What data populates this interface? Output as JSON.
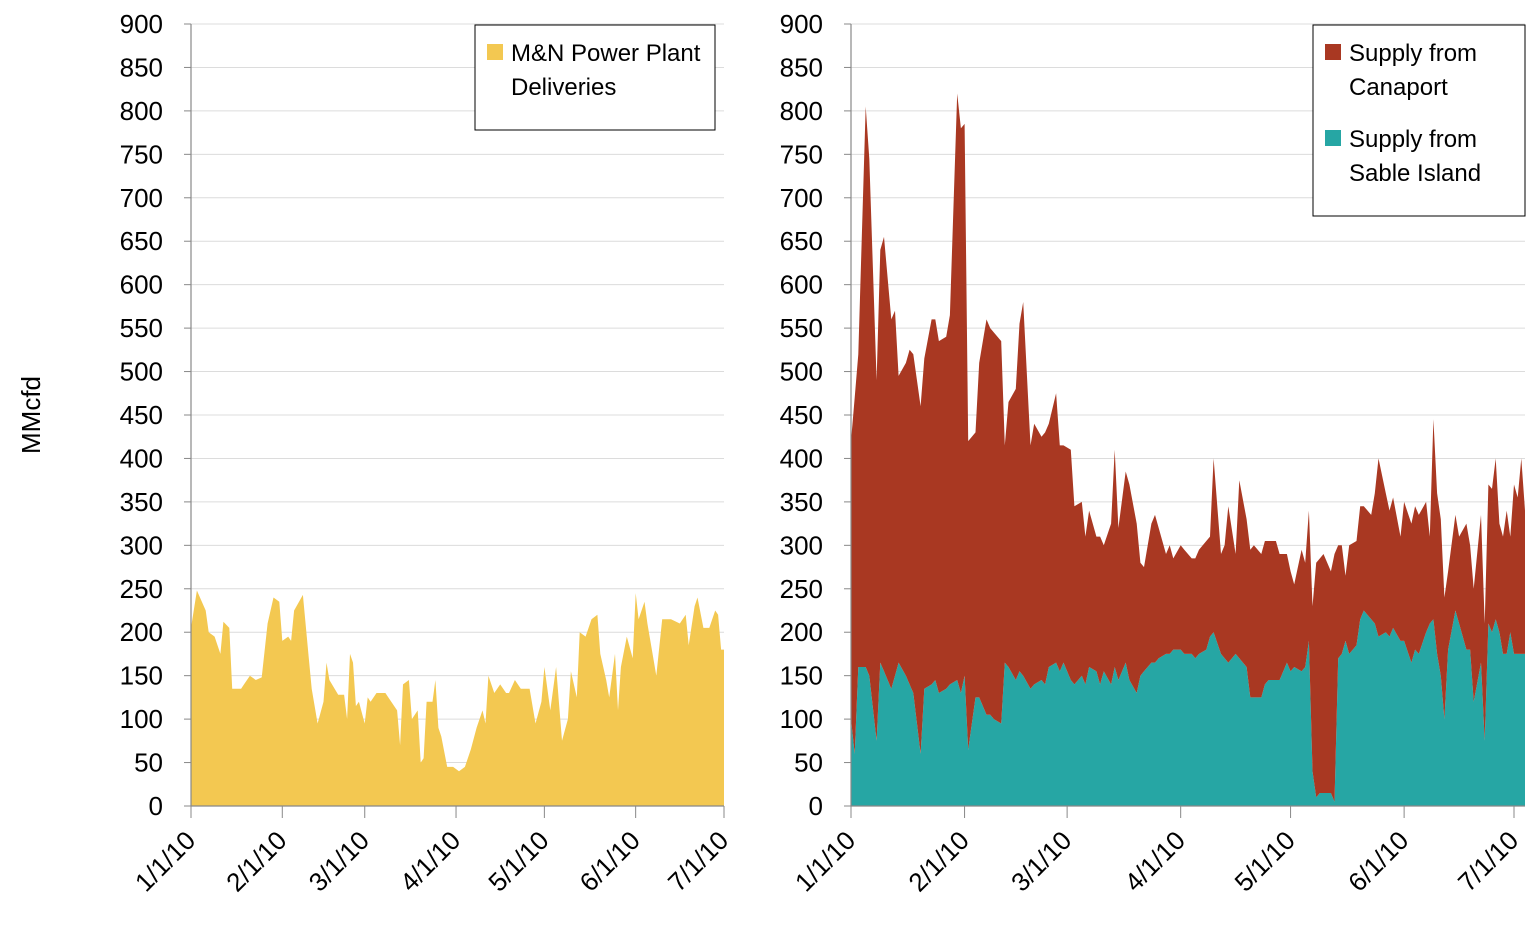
{
  "chart_data": [
    {
      "type": "area",
      "y_label": "MMcfd",
      "grid": true,
      "legend": "upper right",
      "ylim": [
        0,
        900
      ],
      "yticks": [
        0,
        50,
        100,
        150,
        200,
        250,
        300,
        350,
        400,
        450,
        500,
        550,
        600,
        650,
        700,
        750,
        800,
        850,
        900
      ],
      "xlim": [
        "1/1/10",
        "7/1/10"
      ],
      "xticks": [
        "1/1/10",
        "2/1/10",
        "3/1/10",
        "4/1/10",
        "5/1/10",
        "6/1/10",
        "7/1/10"
      ],
      "x": [
        "1/1/10",
        "1/3/10",
        "1/6/10",
        "1/7/10",
        "1/9/10",
        "1/11/10",
        "1/12/10",
        "1/14/10",
        "1/15/10",
        "1/18/10",
        "1/19/10",
        "1/21/10",
        "1/23/10",
        "1/25/10",
        "1/27/10",
        "1/29/10",
        "1/31/10",
        "2/1/10",
        "2/3/10",
        "2/4/10",
        "2/5/10",
        "2/8/10",
        "2/10/10",
        "2/11/10",
        "2/13/10",
        "2/15/10",
        "2/16/10",
        "2/17/10",
        "2/20/10",
        "2/22/10",
        "2/23/10",
        "2/24/10",
        "2/25/10",
        "2/26/10",
        "2/27/10",
        "3/1/10",
        "3/2/10",
        "3/3/10",
        "3/5/10",
        "3/8/10",
        "3/9/10",
        "3/12/10",
        "3/13/10",
        "3/14/10",
        "3/16/10",
        "3/17/10",
        "3/19/10",
        "3/20/10",
        "3/21/10",
        "3/22/10",
        "3/24/10",
        "3/25/10",
        "3/26/10",
        "3/27/10",
        "3/29/10",
        "3/31/10",
        "4/2/10",
        "4/4/10",
        "4/6/10",
        "4/8/10",
        "4/10/10",
        "4/11/10",
        "4/12/10",
        "4/14/10",
        "4/16/10",
        "4/18/10",
        "4/19/10",
        "4/21/10",
        "4/23/10",
        "4/26/10",
        "4/28/10",
        "4/30/10",
        "5/1/10",
        "5/3/10",
        "5/5/10",
        "5/7/10",
        "5/9/10",
        "5/10/10",
        "5/12/10",
        "5/13/10",
        "5/15/10",
        "5/17/10",
        "5/19/10",
        "5/20/10",
        "5/22/10",
        "5/23/10",
        "5/25/10",
        "5/26/10",
        "5/27/10",
        "5/29/10",
        "5/31/10",
        "6/1/10",
        "6/2/10",
        "6/4/10",
        "6/5/10",
        "6/8/10",
        "6/10/10",
        "6/13/10",
        "6/16/10",
        "6/18/10",
        "6/19/10",
        "6/21/10",
        "6/22/10",
        "6/24/10",
        "6/26/10",
        "6/28/10",
        "6/29/10",
        "6/30/10",
        "7/1/10"
      ],
      "series": [
        {
          "name": "M&N Power Plant Deliveries",
          "color": "#f3c851",
          "values": [
            205,
            248,
            225,
            200,
            195,
            175,
            212,
            205,
            135,
            135,
            140,
            150,
            145,
            148,
            210,
            240,
            235,
            190,
            195,
            190,
            225,
            243,
            170,
            135,
            95,
            120,
            165,
            145,
            128,
            128,
            100,
            175,
            165,
            115,
            120,
            95,
            125,
            120,
            130,
            130,
            125,
            110,
            70,
            140,
            145,
            100,
            110,
            50,
            55,
            120,
            120,
            145,
            90,
            80,
            45,
            45,
            40,
            45,
            65,
            90,
            110,
            95,
            150,
            130,
            140,
            130,
            130,
            145,
            135,
            135,
            95,
            120,
            160,
            110,
            160,
            75,
            100,
            155,
            125,
            200,
            195,
            215,
            220,
            175,
            145,
            125,
            175,
            110,
            160,
            195,
            170,
            245,
            215,
            235,
            210,
            150,
            215,
            215,
            210,
            220,
            185,
            230,
            240,
            205,
            205,
            225,
            220,
            180,
            180
          ]
        }
      ]
    },
    {
      "type": "area",
      "grid": true,
      "legend": "upper right",
      "stacked": true,
      "ylim": [
        0,
        900
      ],
      "yticks": [
        0,
        50,
        100,
        150,
        200,
        250,
        300,
        350,
        400,
        450,
        500,
        550,
        600,
        650,
        700,
        750,
        800,
        850,
        900
      ],
      "xlim": [
        "1/1/10",
        "7/4/10"
      ],
      "xticks": [
        "1/1/10",
        "2/1/10",
        "3/1/10",
        "4/1/10",
        "5/1/10",
        "6/1/10",
        "7/1/10"
      ],
      "x": [
        "1/1/10",
        "1/2/10",
        "1/3/10",
        "1/5/10",
        "1/6/10",
        "1/8/10",
        "1/9/10",
        "1/10/10",
        "1/12/10",
        "1/13/10",
        "1/14/10",
        "1/16/10",
        "1/17/10",
        "1/18/10",
        "1/20/10",
        "1/21/10",
        "1/23/10",
        "1/24/10",
        "1/25/10",
        "1/27/10",
        "1/28/10",
        "1/30/10",
        "1/31/10",
        "2/1/10",
        "2/2/10",
        "2/4/10",
        "2/5/10",
        "2/7/10",
        "2/8/10",
        "2/9/10",
        "2/11/10",
        "2/12/10",
        "2/13/10",
        "2/15/10",
        "2/16/10",
        "2/17/10",
        "2/19/10",
        "2/20/10",
        "2/22/10",
        "2/23/10",
        "2/24/10",
        "2/26/10",
        "2/27/10",
        "2/28/10",
        "3/2/10",
        "3/3/10",
        "3/5/10",
        "3/6/10",
        "3/7/10",
        "3/9/10",
        "3/10/10",
        "3/11/10",
        "3/13/10",
        "3/14/10",
        "3/15/10",
        "3/17/10",
        "3/18/10",
        "3/20/10",
        "3/21/10",
        "3/22/10",
        "3/24/10",
        "3/25/10",
        "3/26/10",
        "3/28/10",
        "3/29/10",
        "3/30/10",
        "4/1/10",
        "4/2/10",
        "4/4/10",
        "4/5/10",
        "4/6/10",
        "4/8/10",
        "4/9/10",
        "4/10/10",
        "4/12/10",
        "4/13/10",
        "4/14/10",
        "4/16/10",
        "4/17/10",
        "4/19/10",
        "4/20/10",
        "4/21/10",
        "4/23/10",
        "4/24/10",
        "4/25/10",
        "4/27/10",
        "4/28/10",
        "4/30/10",
        "5/1/10",
        "5/2/10",
        "5/4/10",
        "5/5/10",
        "5/6/10",
        "5/7/10",
        "5/8/10",
        "5/9/10",
        "5/10/10",
        "5/12/10",
        "5/13/10",
        "5/14/10",
        "5/15/10",
        "5/16/10",
        "5/17/10",
        "5/19/10",
        "5/20/10",
        "5/21/10",
        "5/23/10",
        "5/24/10",
        "5/25/10",
        "5/27/10",
        "5/28/10",
        "5/29/10",
        "5/31/10",
        "6/1/10",
        "6/3/10",
        "6/4/10",
        "6/5/10",
        "6/7/10",
        "6/8/10",
        "6/9/10",
        "6/10/10",
        "6/11/10",
        "6/12/10",
        "6/13/10",
        "6/15/10",
        "6/16/10",
        "6/18/10",
        "6/19/10",
        "6/20/10",
        "6/22/10",
        "6/23/10",
        "6/24/10",
        "6/25/10",
        "6/26/10",
        "6/27/10",
        "6/28/10",
        "6/29/10",
        "6/30/10",
        "7/1/10",
        "7/2/10",
        "7/3/10",
        "7/4/10"
      ],
      "series": [
        {
          "name": "Supply from Canaport",
          "color": "#a93822",
          "values": [
            320,
            410,
            360,
            645,
            595,
            415,
            475,
            500,
            425,
            420,
            330,
            360,
            385,
            390,
            400,
            380,
            420,
            415,
            405,
            405,
            425,
            675,
            650,
            635,
            355,
            305,
            385,
            455,
            445,
            445,
            440,
            250,
            305,
            335,
            400,
            430,
            280,
            300,
            280,
            290,
            280,
            310,
            260,
            250,
            265,
            205,
            200,
            170,
            180,
            155,
            170,
            145,
            185,
            250,
            175,
            220,
            225,
            195,
            130,
            120,
            160,
            170,
            150,
            115,
            125,
            105,
            120,
            120,
            110,
            115,
            120,
            125,
            115,
            200,
            115,
            130,
            180,
            115,
            205,
            170,
            170,
            175,
            165,
            165,
            160,
            160,
            145,
            125,
            115,
            95,
            140,
            120,
            150,
            190,
            270,
            270,
            275,
            255,
            285,
            130,
            125,
            75,
            125,
            120,
            130,
            120,
            120,
            150,
            205,
            160,
            145,
            150,
            120,
            160,
            160,
            165,
            160,
            150,
            100,
            230,
            185,
            180,
            140,
            90,
            110,
            100,
            145,
            120,
            130,
            170,
            135,
            160,
            165,
            185,
            125,
            135,
            165,
            110,
            195,
            180,
            225,
            165
          ]
        },
        {
          "name": "Supply from Sable Island",
          "color": "#26a6a4",
          "values": [
            100,
            60,
            160,
            160,
            150,
            75,
            165,
            155,
            135,
            150,
            165,
            150,
            140,
            130,
            60,
            135,
            140,
            145,
            130,
            135,
            140,
            145,
            130,
            150,
            65,
            125,
            125,
            105,
            105,
            100,
            95,
            165,
            160,
            145,
            155,
            150,
            135,
            140,
            145,
            140,
            160,
            165,
            155,
            165,
            145,
            140,
            150,
            140,
            160,
            155,
            140,
            155,
            140,
            160,
            145,
            165,
            145,
            130,
            150,
            155,
            165,
            165,
            170,
            175,
            175,
            180,
            180,
            175,
            175,
            170,
            175,
            180,
            195,
            200,
            175,
            170,
            165,
            175,
            170,
            160,
            125,
            125,
            125,
            140,
            145,
            145,
            145,
            165,
            155,
            160,
            155,
            160,
            190,
            40,
            10,
            15,
            15,
            15,
            5,
            170,
            175,
            190,
            175,
            185,
            215,
            225,
            215,
            210,
            195,
            200,
            195,
            205,
            190,
            190,
            165,
            180,
            175,
            200,
            210,
            215,
            175,
            150,
            100,
            180,
            225,
            210,
            180,
            180,
            120,
            165,
            75,
            210,
            200,
            215,
            200,
            175,
            175,
            200,
            175,
            175,
            175,
            175
          ]
        }
      ]
    }
  ]
}
